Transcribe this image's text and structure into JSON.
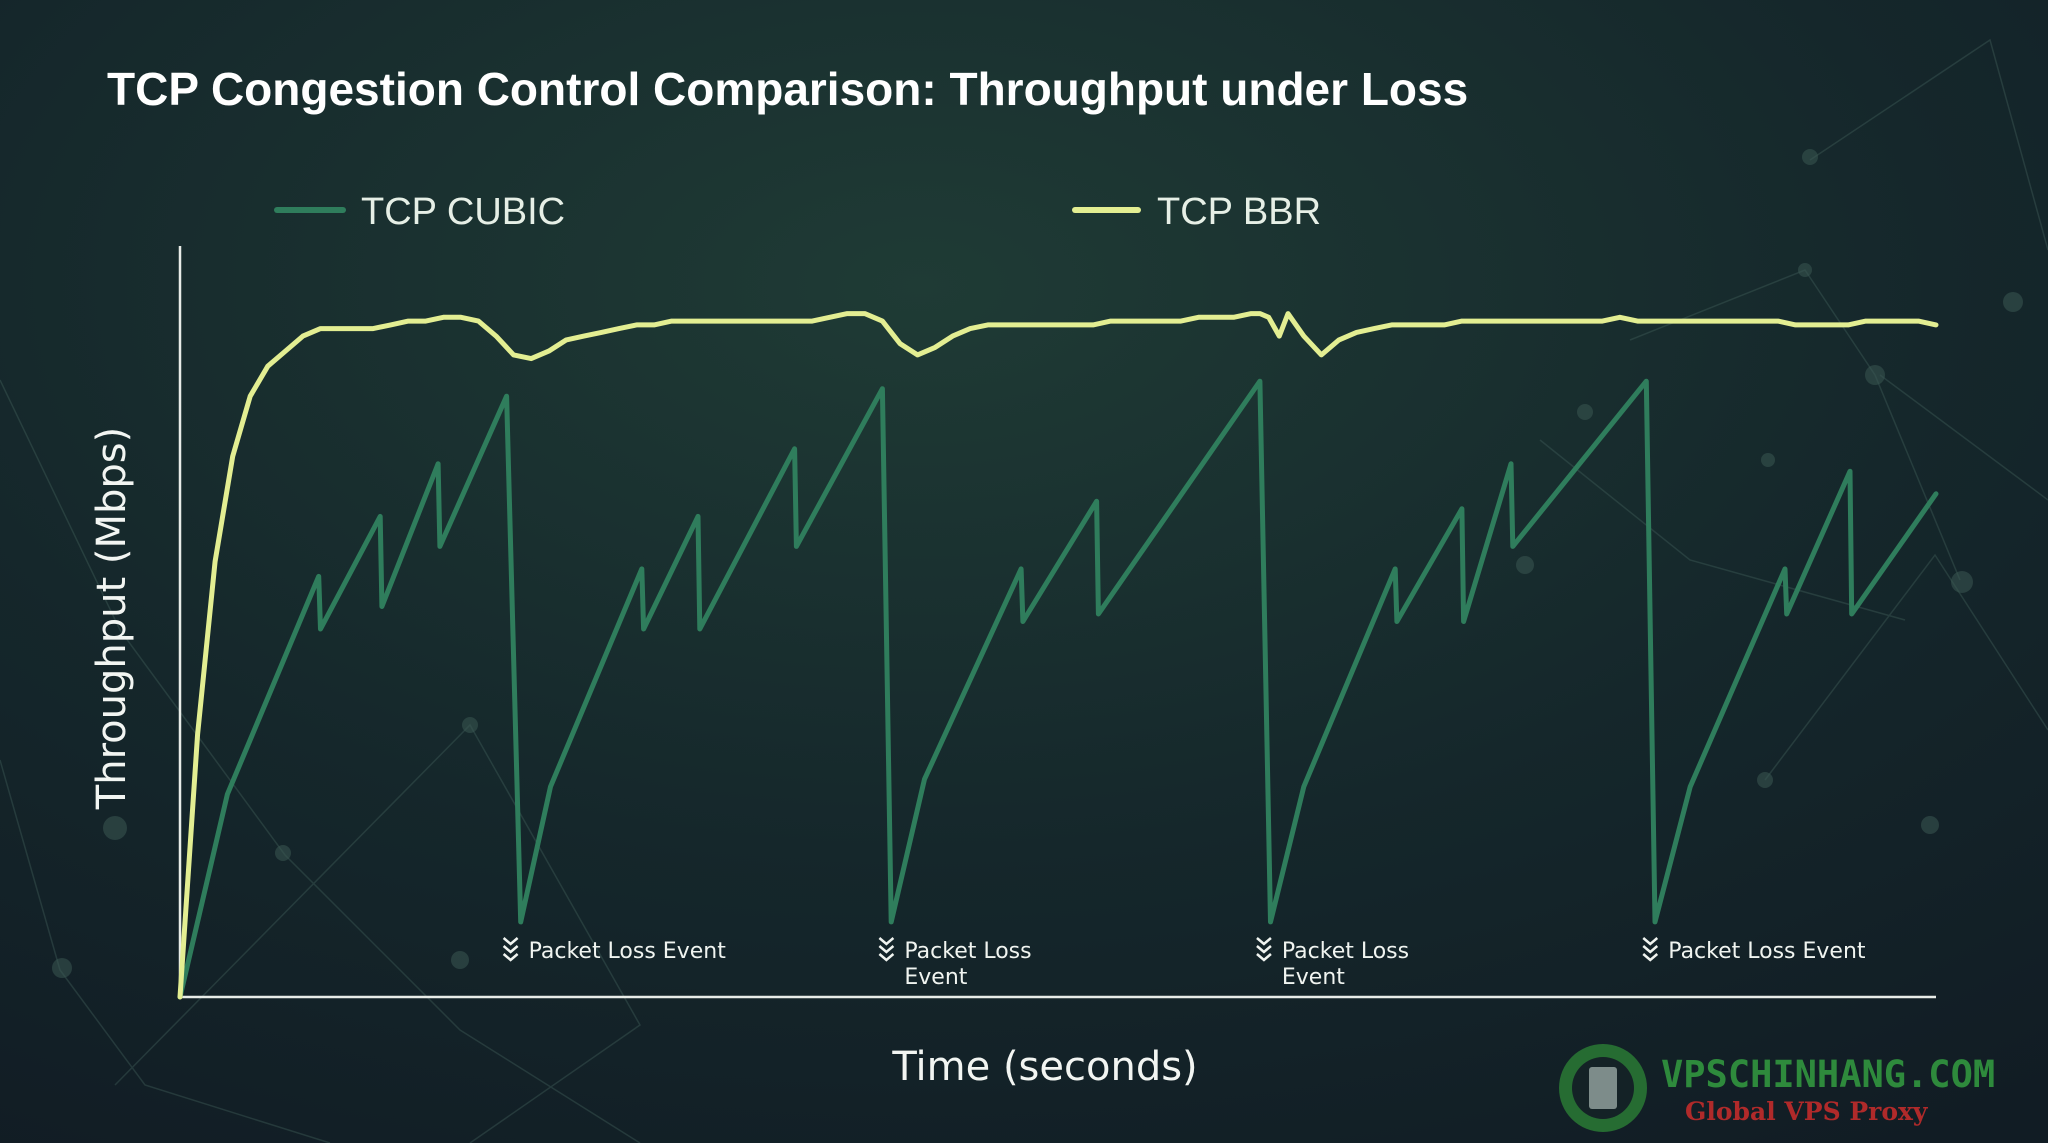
{
  "chart_data": {
    "type": "line",
    "title": "TCP Congestion Control Comparison: Throughput under Loss",
    "xlabel": "Time (seconds)",
    "ylabel": "Throughput (Mbps)",
    "xlim": [
      0,
      100
    ],
    "ylim": [
      0,
      100
    ],
    "grid": false,
    "legend_position": "top",
    "series": [
      {
        "name": "TCP CUBIC",
        "color": "#2f7d5c",
        "x": [
          0,
          2.7,
          7.9,
          8.0,
          11.4,
          11.5,
          14.7,
          14.8,
          18.6,
          19.4,
          21.1,
          26.3,
          26.4,
          29.5,
          29.6,
          35.0,
          35.1,
          40.0,
          40.5,
          42.4,
          47.9,
          48.0,
          52.2,
          52.3,
          61.5,
          62.1,
          64.0,
          69.2,
          69.3,
          73.0,
          73.1,
          75.8,
          75.9,
          83.5,
          84.0,
          86.0,
          91.4,
          91.5,
          95.1,
          95.2,
          100
        ],
        "y": [
          0,
          27,
          56,
          49,
          64,
          52,
          71,
          60,
          80,
          10,
          28,
          57,
          49,
          64,
          49,
          73,
          60,
          81,
          10,
          29,
          57,
          50,
          66,
          51,
          82,
          10,
          28,
          57,
          50,
          65,
          50,
          71,
          60,
          82,
          10,
          28,
          57,
          51,
          70,
          51,
          67
        ]
      },
      {
        "name": "TCP BBR",
        "color": "#e3ee92",
        "x": [
          0,
          1,
          2,
          3,
          4,
          5,
          6,
          7,
          8,
          9,
          10,
          11,
          12,
          13,
          14,
          15,
          16,
          17,
          18,
          19,
          20,
          21,
          22,
          23,
          24,
          25,
          26,
          27,
          28,
          29,
          30,
          31,
          32,
          33,
          34,
          35,
          36,
          37,
          38,
          39,
          40,
          41,
          42,
          43,
          44,
          45,
          46,
          47,
          48,
          49,
          50,
          51,
          52,
          53,
          54,
          55,
          56,
          57,
          58,
          59,
          60,
          61,
          61.5,
          62,
          62.6,
          63.1,
          64,
          65,
          66,
          67,
          68,
          69,
          70,
          71,
          72,
          73,
          74,
          75,
          76,
          77,
          78,
          79,
          80,
          81,
          82,
          83,
          84,
          85,
          86,
          87,
          88,
          89,
          90,
          91,
          92,
          93,
          94,
          95,
          96,
          97,
          98,
          99,
          100
        ],
        "y": [
          0,
          35,
          58,
          72,
          80,
          84,
          86,
          88,
          89,
          89,
          89,
          89,
          89.5,
          90,
          90,
          90.5,
          90.5,
          90,
          88,
          85.5,
          85,
          86,
          87.5,
          88,
          88.5,
          89,
          89.5,
          89.5,
          90,
          90,
          90,
          90,
          90,
          90,
          90,
          90,
          90,
          90.5,
          91,
          91,
          90,
          87,
          85.5,
          86.5,
          88,
          89,
          89.5,
          89.5,
          89.5,
          89.5,
          89.5,
          89.5,
          89.5,
          90,
          90,
          90,
          90,
          90,
          90.5,
          90.5,
          90.5,
          91,
          91,
          90.5,
          88,
          91,
          88,
          85.5,
          87.5,
          88.5,
          89,
          89.5,
          89.5,
          89.5,
          89.5,
          90,
          90,
          90,
          90,
          90,
          90,
          90,
          90,
          90,
          90.5,
          90,
          90,
          90,
          90,
          90,
          90,
          90,
          90,
          90,
          89.5,
          89.5,
          89.5,
          89.5,
          90,
          90,
          90,
          90,
          89.5
        ]
      }
    ],
    "annotations": [
      {
        "text": "Packet Loss Event",
        "x": 18.6
      },
      {
        "text": "Packet Loss\nEvent",
        "x": 40.0
      },
      {
        "text": "Packet Loss\nEvent",
        "x": 61.5
      },
      {
        "text": "Packet Loss Event",
        "x": 83.5
      }
    ]
  },
  "watermark": {
    "brand": "VPSCHINHANG.COM",
    "tagline": "Global VPS Proxy",
    "brand_color": "#2e8a3c",
    "tagline_color": "#b02a2a"
  },
  "colors": {
    "background": "#142226",
    "axis": "#e8ece8"
  }
}
